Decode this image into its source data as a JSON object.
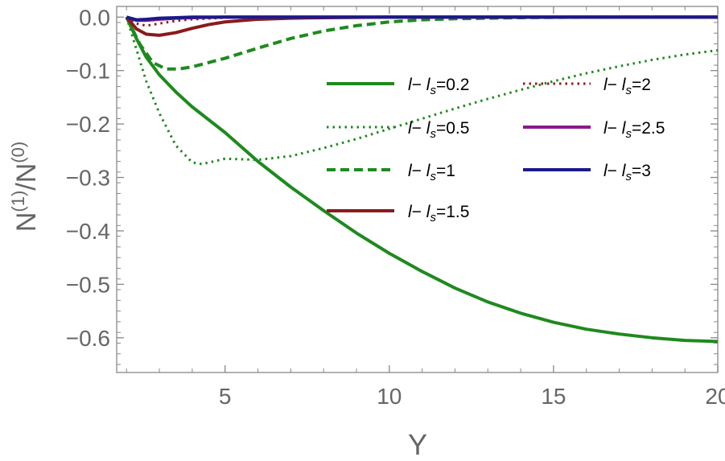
{
  "chart_data": {
    "type": "line",
    "title": "",
    "xlabel": "Y",
    "ylabel": "N(1)/N(0)",
    "ylabel_parts": {
      "base1": "N",
      "sup1": "(1)",
      "slash": "/",
      "base2": "N",
      "sup2": "(0)"
    },
    "xlim": [
      1.7,
      20
    ],
    "ylim": [
      -0.665,
      0.02
    ],
    "x_ticks": [
      5,
      10,
      15,
      20
    ],
    "x_tick_labels": [
      "5",
      "10",
      "15",
      "20"
    ],
    "y_ticks": [
      0,
      -0.1,
      -0.2,
      -0.3,
      -0.4,
      -0.5,
      -0.6
    ],
    "y_tick_labels": [
      "0.0",
      "−0.1",
      "−0.2",
      "−0.3",
      "−0.4",
      "−0.5",
      "−0.6"
    ],
    "grid": false,
    "legend_position": "top-right",
    "series": [
      {
        "name": "l− ls=0.2",
        "legend": {
          "a": "l",
          "b": "− ",
          "c": "l",
          "sub": "s",
          "d": "=0.2"
        },
        "color": "#1e8a1e",
        "dash": "solid",
        "x": [
          2,
          2.3,
          2.6,
          3,
          3.5,
          4,
          5,
          6,
          7,
          8,
          9,
          10,
          11,
          12,
          13,
          14,
          15,
          16,
          17,
          18,
          19,
          20
        ],
        "y": [
          0,
          -0.04,
          -0.075,
          -0.108,
          -0.14,
          -0.168,
          -0.216,
          -0.27,
          -0.318,
          -0.362,
          -0.404,
          -0.442,
          -0.476,
          -0.507,
          -0.533,
          -0.554,
          -0.571,
          -0.584,
          -0.593,
          -0.6,
          -0.605,
          -0.607
        ]
      },
      {
        "name": "l− ls=0.5",
        "legend": {
          "a": "l",
          "b": "− ",
          "c": "l",
          "sub": "s",
          "d": "=0.5"
        },
        "color": "#1e8a1e",
        "dash": "dotted",
        "x": [
          2,
          2.3,
          2.6,
          3,
          3.5,
          4,
          4.3,
          5,
          6,
          7,
          8,
          9,
          10,
          11,
          12,
          13,
          14,
          15,
          16,
          17,
          18,
          19,
          20
        ],
        "y": [
          0,
          -0.06,
          -0.12,
          -0.18,
          -0.24,
          -0.272,
          -0.275,
          -0.265,
          -0.267,
          -0.26,
          -0.245,
          -0.228,
          -0.209,
          -0.19,
          -0.171,
          -0.153,
          -0.136,
          -0.12,
          -0.105,
          -0.092,
          -0.08,
          -0.07,
          -0.062
        ]
      },
      {
        "name": "l− ls=1",
        "legend": {
          "a": "l",
          "b": "− ",
          "c": "l",
          "sub": "s",
          "d": "=1"
        },
        "color": "#1e8a1e",
        "dash": "dashed",
        "x": [
          2,
          2.4,
          2.8,
          3.2,
          3.6,
          4,
          5,
          6,
          7,
          8,
          9,
          10,
          11,
          12,
          14,
          16,
          18,
          20
        ],
        "y": [
          0,
          -0.05,
          -0.085,
          -0.097,
          -0.097,
          -0.093,
          -0.077,
          -0.058,
          -0.04,
          -0.026,
          -0.016,
          -0.009,
          -0.005,
          -0.003,
          -0.001,
          0,
          0,
          0
        ]
      },
      {
        "name": "l− ls=1.5",
        "legend": {
          "a": "l",
          "b": "− ",
          "c": "l",
          "sub": "s",
          "d": "=1.5"
        },
        "color": "#8b1a1a",
        "dash": "solid",
        "x": [
          2,
          2.3,
          2.6,
          3,
          3.5,
          4,
          4.5,
          5,
          6,
          7,
          8,
          10,
          12,
          15,
          20
        ],
        "y": [
          0,
          -0.022,
          -0.032,
          -0.034,
          -0.029,
          -0.021,
          -0.014,
          -0.009,
          -0.004,
          -0.002,
          -0.001,
          0,
          0,
          0,
          0
        ]
      },
      {
        "name": "l− ls=2",
        "legend": {
          "a": "l",
          "b": "− ",
          "c": "l",
          "sub": "s",
          "d": "=2"
        },
        "color": "#8b1a1a",
        "dash": "dotted",
        "x": [
          2,
          2.3,
          2.6,
          3,
          3.5,
          4,
          5,
          6,
          8,
          10,
          15,
          20
        ],
        "y": [
          0,
          -0.012,
          -0.016,
          -0.012,
          -0.007,
          -0.004,
          -0.001,
          0,
          0,
          0,
          0,
          0
        ]
      },
      {
        "name": "l− ls=2.5",
        "legend": {
          "a": "l",
          "b": "− ",
          "c": "l",
          "sub": "s",
          "d": "=2.5"
        },
        "color": "#8a1a8a",
        "dash": "solid",
        "x": [
          2,
          2.3,
          2.6,
          3,
          3.5,
          4,
          5,
          10,
          20
        ],
        "y": [
          0,
          -0.006,
          -0.006,
          -0.004,
          -0.002,
          -0.001,
          0,
          0,
          0
        ]
      },
      {
        "name": "l− ls=3",
        "legend": {
          "a": "l",
          "b": "− ",
          "c": "l",
          "sub": "s",
          "d": "=3"
        },
        "color": "#1a1a8a",
        "dash": "solid",
        "x": [
          2,
          2.3,
          2.6,
          3,
          3.5,
          4,
          5,
          10,
          20
        ],
        "y": [
          0,
          -0.005,
          -0.004,
          -0.002,
          -0.001,
          0,
          0,
          0,
          0
        ]
      }
    ]
  }
}
